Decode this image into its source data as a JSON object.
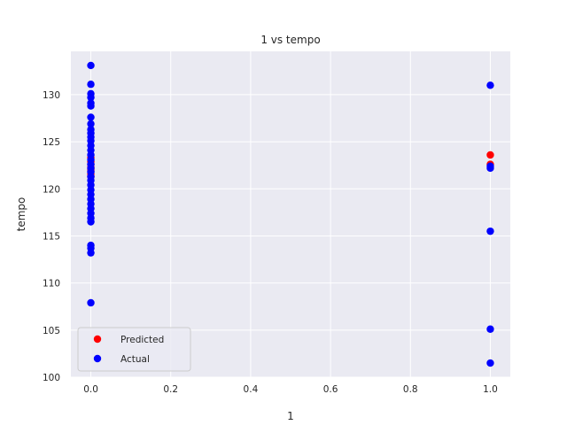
{
  "chart_data": {
    "type": "scatter",
    "title": "1 vs tempo",
    "xlabel": "1",
    "ylabel": "tempo",
    "xlim": [
      -0.05,
      1.05
    ],
    "ylim": [
      100,
      134.6
    ],
    "xticks": [
      "0.0",
      "0.2",
      "0.4",
      "0.6",
      "0.8",
      "1.0"
    ],
    "yticks": [
      "100",
      "105",
      "110",
      "115",
      "120",
      "125",
      "130"
    ],
    "grid": true,
    "legend_position": "lower-left",
    "series": [
      {
        "name": "Predicted",
        "color": "#ff0000",
        "points": [
          [
            0,
            121.3
          ],
          [
            0,
            121.6
          ],
          [
            0,
            121.9
          ],
          [
            0,
            122.1
          ],
          [
            0,
            122.3
          ],
          [
            0,
            122.6
          ],
          [
            0,
            122.9
          ],
          [
            0,
            123.3
          ],
          [
            1,
            123.6
          ],
          [
            1,
            122.6
          ]
        ]
      },
      {
        "name": "Actual",
        "color": "#0000ff",
        "points": [
          [
            0,
            133.1
          ],
          [
            0,
            131.1
          ],
          [
            0,
            130.1
          ],
          [
            0,
            129.7
          ],
          [
            0,
            129.1
          ],
          [
            0,
            128.8
          ],
          [
            0,
            127.6
          ],
          [
            0,
            126.9
          ],
          [
            0,
            126.3
          ],
          [
            0,
            125.9
          ],
          [
            0,
            125.5
          ],
          [
            0,
            125.1
          ],
          [
            0,
            124.6
          ],
          [
            0,
            124.1
          ],
          [
            0,
            123.6
          ],
          [
            0,
            123.1
          ],
          [
            0,
            122.6
          ],
          [
            0,
            122.2
          ],
          [
            0,
            121.8
          ],
          [
            0,
            121.3
          ],
          [
            0,
            120.9
          ],
          [
            0,
            120.4
          ],
          [
            0,
            119.9
          ],
          [
            0,
            119.4
          ],
          [
            0,
            118.9
          ],
          [
            0,
            118.4
          ],
          [
            0,
            117.9
          ],
          [
            0,
            117.4
          ],
          [
            0,
            116.9
          ],
          [
            0,
            116.5
          ],
          [
            0,
            114.0
          ],
          [
            0,
            113.7
          ],
          [
            0,
            113.2
          ],
          [
            0,
            107.9
          ],
          [
            1,
            131.0
          ],
          [
            1,
            122.4
          ],
          [
            1,
            122.2
          ],
          [
            1,
            115.5
          ],
          [
            1,
            105.1
          ],
          [
            1,
            101.5
          ]
        ]
      }
    ]
  }
}
